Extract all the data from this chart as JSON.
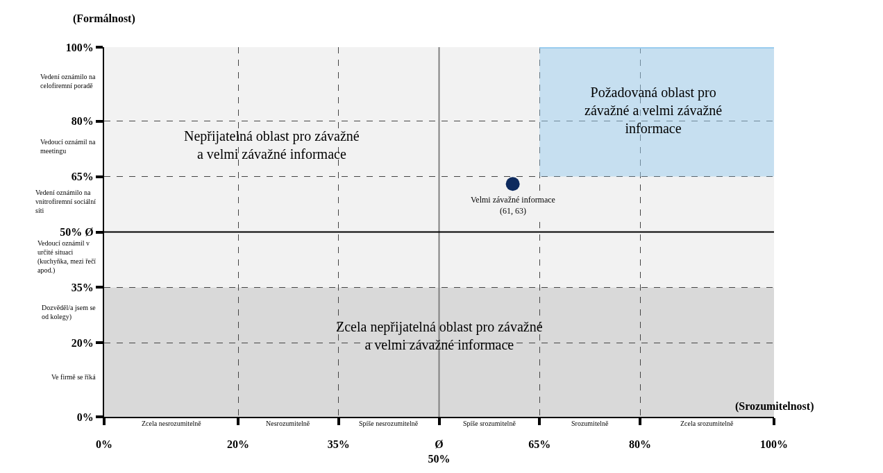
{
  "chart_data": {
    "type": "scatter",
    "xlabel": "(Srozumitelnost)",
    "ylabel": "(Formálnost)",
    "series": [
      {
        "x": [
          61
        ],
        "values": [
          63
        ],
        "color": "#0d2a5e",
        "marker": "circle"
      },
      {
        "type": "line",
        "x": [
          65,
          100
        ],
        "values": [
          100,
          100
        ],
        "lower": [
          65,
          65
        ],
        "upper": [
          100,
          100
        ],
        "color": "#99ccee"
      }
    ],
    "xlim": [
      0,
      100
    ],
    "ylim": [
      0,
      100
    ],
    "xticks": [
      {
        "value": 0,
        "label": "0%"
      },
      {
        "value": 20,
        "label": "20%"
      },
      {
        "value": 35,
        "label": "35%"
      },
      {
        "value": 50,
        "label": "Ø\n50%"
      },
      {
        "value": 65,
        "label": "65%"
      },
      {
        "value": 80,
        "label": "80%"
      },
      {
        "value": 100,
        "label": "100%"
      }
    ],
    "yticks": [
      {
        "value": 0,
        "label": "0%"
      },
      {
        "value": 20,
        "label": "20%"
      },
      {
        "value": 35,
        "label": "35%"
      },
      {
        "value": 50,
        "label": "50% Ø"
      },
      {
        "value": 65,
        "label": "65%"
      },
      {
        "value": 80,
        "label": "80%"
      },
      {
        "value": 100,
        "label": "100%"
      }
    ],
    "grid": true,
    "bands": [
      {
        "axis": "y",
        "from": 35,
        "to": 100,
        "color": "#f2f2f2"
      },
      {
        "axis": "y",
        "from": 0,
        "to": 35,
        "color": "#d9d9d9"
      }
    ],
    "ref_lines": [
      {
        "axis": "x",
        "value": 50,
        "color": "#808080"
      },
      {
        "axis": "y",
        "value": 50,
        "color": "#000000"
      }
    ],
    "annotations": [
      {
        "text": "Velmi závažné informace\n(61, 63)",
        "x": 61,
        "y": 63
      },
      "Vedení oznámilo na\ncelofiremní poradě",
      "Vedoucí oznámil na\nmeetingu",
      "Vedení oznámilo na\nvnitrofiremní sociální\nsíti",
      "Vedoucí oznámil v\nurčité situaci\n(kuchyňka, mezi řečí\napod.)",
      "Dozvěděl/a jsem se\nod kolegy)",
      "Ve firmě se říká",
      "Zcela nesrozumitelně",
      "Nesrozumitelně",
      "Spíše nesrozumitelně",
      "Spíše srozumitelně",
      "Srozumitelně",
      "Zcela srozumitelně",
      "Nepřijatelná oblast pro závažné\na velmi závažné informace",
      "Zcela nepřijatelná oblast pro závažné\na velmi závažné informace",
      "Požadovaná oblast pro\nzávažné a velmi závažné\ninformace"
    ]
  }
}
